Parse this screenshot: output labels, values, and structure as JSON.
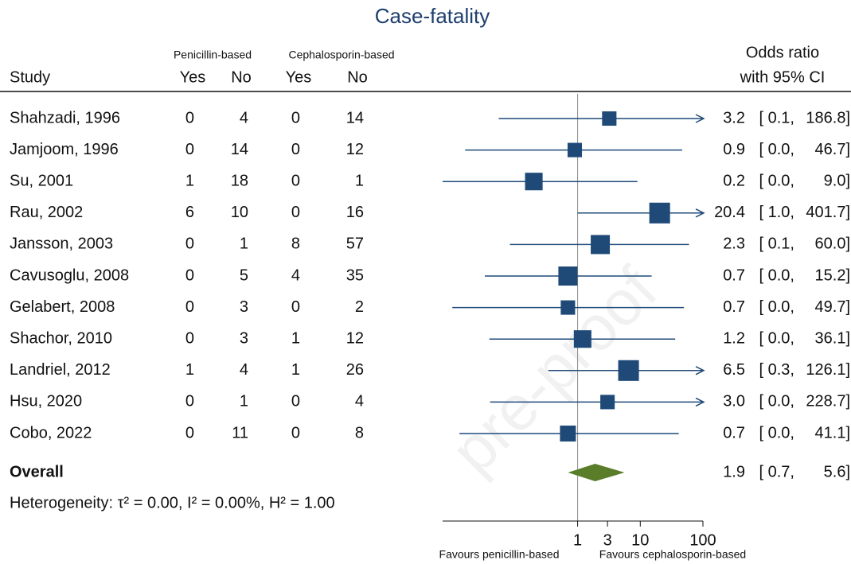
{
  "chart_data": {
    "type": "forest",
    "title": "Case-fatality",
    "watermark": "pre-proof",
    "group_labels": [
      "Penicillin-based",
      "Cephalosporin-based"
    ],
    "column_labels": [
      "Study",
      "Yes",
      "No",
      "Yes",
      "No"
    ],
    "effect_label": [
      "Odds ratio",
      "with 95% CI"
    ],
    "xscale": "log",
    "xlim": [
      0.007,
      100
    ],
    "xticks": [
      1,
      3,
      10,
      100
    ],
    "null_value": 1,
    "line_color": "#1f4a78",
    "square_color": "#1f4a78",
    "diamond_color": "#5a7d2a",
    "studies": [
      {
        "name": "Shahzadi, 1996",
        "counts": [
          0,
          4,
          0,
          14
        ],
        "or": 3.2,
        "or_label": "3.2",
        "lower": 0.055,
        "lower_label": "[ 0.1,",
        "upper": 186.8,
        "upper_label": "186.8]",
        "weight": 6.3
      },
      {
        "name": "Jamjoom, 1996",
        "counts": [
          0,
          14,
          0,
          12
        ],
        "or": 0.9,
        "or_label": "0.9",
        "lower": 0.016,
        "lower_label": "[ 0.0,",
        "upper": 46.7,
        "upper_label": "46.7]",
        "weight": 6.3
      },
      {
        "name": "Su, 2001",
        "counts": [
          1,
          18,
          0,
          1
        ],
        "or": 0.2,
        "or_label": "0.2",
        "lower": 0.007,
        "lower_label": "[ 0.0,",
        "upper": 9.0,
        "upper_label": "9.0]",
        "weight": 9.4
      },
      {
        "name": "Rau, 2002",
        "counts": [
          6,
          10,
          0,
          16
        ],
        "or": 20.4,
        "or_label": "20.4",
        "lower": 1.0,
        "lower_label": "[ 1.0,",
        "upper": 401.7,
        "upper_label": "401.7]",
        "weight": 13.1
      },
      {
        "name": "Jansson, 2003",
        "counts": [
          0,
          1,
          8,
          57
        ],
        "or": 2.3,
        "or_label": "2.3",
        "lower": 0.083,
        "lower_label": "[ 0.1,",
        "upper": 60.0,
        "upper_label": "60.0]",
        "weight": 11.1
      },
      {
        "name": "Cavusoglu, 2008",
        "counts": [
          0,
          5,
          4,
          35
        ],
        "or": 0.7,
        "or_label": "0.7",
        "lower": 0.033,
        "lower_label": "[ 0.0,",
        "upper": 15.2,
        "upper_label": "15.2]",
        "weight": 11.1
      },
      {
        "name": "Gelabert, 2008",
        "counts": [
          0,
          3,
          0,
          2
        ],
        "or": 0.7,
        "or_label": "0.7",
        "lower": 0.01,
        "lower_label": "[ 0.0,",
        "upper": 49.7,
        "upper_label": "49.7]",
        "weight": 6.3
      },
      {
        "name": "Shachor, 2010",
        "counts": [
          0,
          3,
          1,
          12
        ],
        "or": 1.2,
        "or_label": "1.2",
        "lower": 0.039,
        "lower_label": "[ 0.0,",
        "upper": 36.1,
        "upper_label": "36.1]",
        "weight": 9.4
      },
      {
        "name": "Landriel, 2012",
        "counts": [
          1,
          4,
          1,
          26
        ],
        "or": 6.5,
        "or_label": "6.5",
        "lower": 0.34,
        "lower_label": "[ 0.3,",
        "upper": 126.1,
        "upper_label": "126.1]",
        "weight": 13.1
      },
      {
        "name": "Hsu, 2020",
        "counts": [
          0,
          1,
          0,
          4
        ],
        "or": 3.0,
        "or_label": "3.0",
        "lower": 0.04,
        "lower_label": "[ 0.0,",
        "upper": 228.7,
        "upper_label": "228.7]",
        "weight": 6.3
      },
      {
        "name": "Cobo, 2022",
        "counts": [
          0,
          11,
          0,
          8
        ],
        "or": 0.7,
        "or_label": "0.7",
        "lower": 0.013,
        "lower_label": "[ 0.0,",
        "upper": 41.1,
        "upper_label": "41.1]",
        "weight": 7.7
      }
    ],
    "overall": {
      "name": "Overall",
      "or": 1.9,
      "or_label": "1.9",
      "lower": 0.7,
      "lower_label": "[ 0.7,",
      "upper": 5.6,
      "upper_label": "5.6]"
    },
    "heterogeneity": "Heterogeneity: τ² = 0.00, I² = 0.00%, H² = 1.00",
    "xaxis_labels": [
      "Favours penicillin-based",
      "Favours cephalosporin-based"
    ]
  }
}
